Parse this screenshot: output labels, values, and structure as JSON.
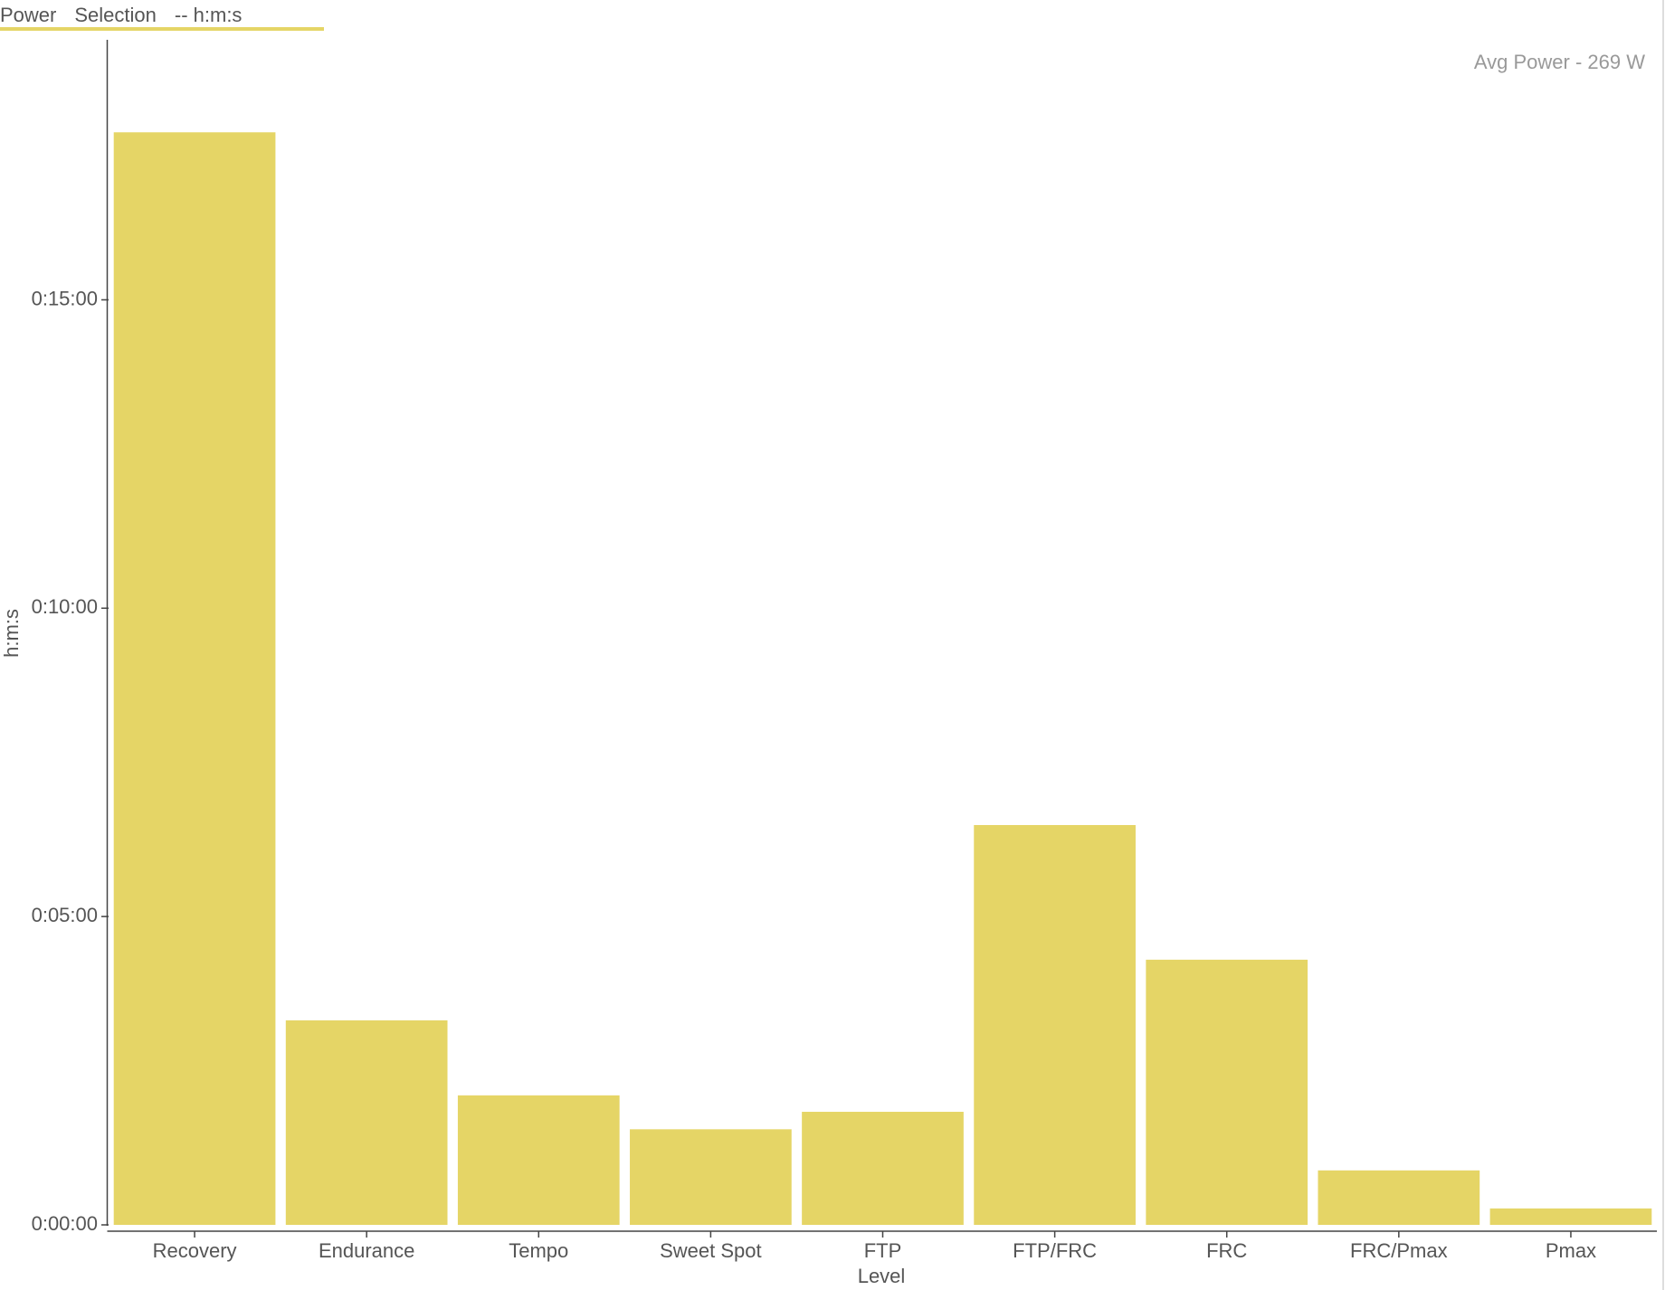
{
  "chart_data": {
    "type": "bar",
    "legend_items": [
      "Power",
      "Selection",
      "-- h:m:s"
    ],
    "annotation": "Avg Power - 269 W",
    "x_label": "Level",
    "y_label": "h:m:s",
    "categories": [
      "Recovery",
      "Endurance",
      "Tempo",
      "Sweet Spot",
      "FTP",
      "FTP/FRC",
      "FRC",
      "FRC/Pmax",
      "Pmax"
    ],
    "series": [
      {
        "name": "Power",
        "color": "#e5d566",
        "values": [
          1063,
          199,
          126,
          93,
          110,
          389,
          258,
          53,
          16
        ]
      }
    ],
    "ylim": [
      0,
      1153
    ],
    "yticks": [
      {
        "value": 0,
        "label": "0:00:00"
      },
      {
        "value": 300,
        "label": "0:05:00"
      },
      {
        "value": 600,
        "label": "0:10:00"
      },
      {
        "value": 900,
        "label": "0:15:00"
      }
    ],
    "grid": false
  }
}
